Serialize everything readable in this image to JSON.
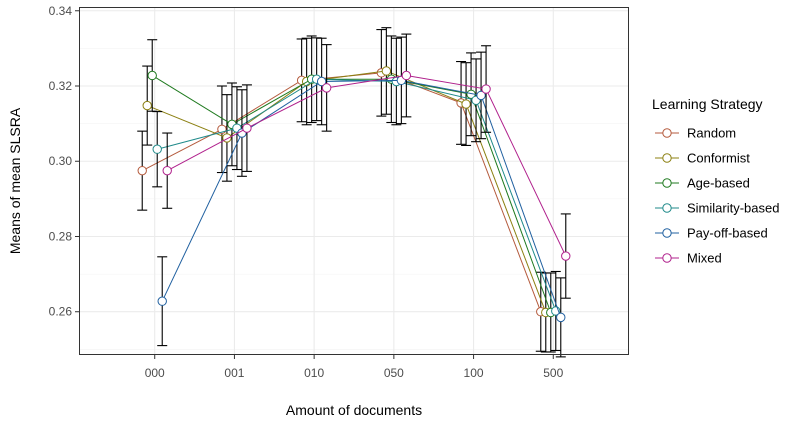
{
  "chart_data": {
    "type": "line",
    "xlabel": "Amount of documents",
    "ylabel": "Means of mean SLSRA",
    "categories": [
      "000",
      "001",
      "010",
      "050",
      "100",
      "500"
    ],
    "ylim": [
      0.2485,
      0.341
    ],
    "yticks": [
      0.26,
      0.28,
      0.3,
      0.32,
      0.34
    ],
    "ytick_labels": [
      "0.26",
      "0.28",
      "0.30",
      "0.32",
      "0.34"
    ],
    "grid": true,
    "error_bars": true,
    "legend_title": "Learning Strategy",
    "legend_position": "right",
    "series": [
      {
        "name": "Random",
        "color": "#B45A3C",
        "values": [
          0.2975,
          0.3085,
          0.3215,
          0.3235,
          0.3155,
          0.26
        ],
        "errors": [
          0.0105,
          0.0115,
          0.011,
          0.0115,
          0.011,
          0.0105
        ]
      },
      {
        "name": "Conformist",
        "color": "#8C8012",
        "values": [
          0.3148,
          0.3062,
          0.3212,
          0.324,
          0.3152,
          0.2598
        ],
        "errors": [
          0.0105,
          0.0115,
          0.0115,
          0.0115,
          0.011,
          0.0105
        ]
      },
      {
        "name": "Age-based",
        "color": "#1F7A1F",
        "values": [
          0.3228,
          0.3098,
          0.3218,
          0.3218,
          0.3178,
          0.2598
        ],
        "errors": [
          0.0095,
          0.011,
          0.0115,
          0.0115,
          0.011,
          0.0105
        ]
      },
      {
        "name": "Similarity-based",
        "color": "#1F8A8A",
        "values": [
          0.3032,
          0.3088,
          0.3218,
          0.3212,
          0.3162,
          0.2602
        ],
        "errors": [
          0.01,
          0.011,
          0.011,
          0.0115,
          0.011,
          0.0105
        ]
      },
      {
        "name": "Pay-off-based",
        "color": "#2060A0",
        "values": [
          0.2628,
          0.3075,
          0.3212,
          0.3215,
          0.3175,
          0.2585
        ],
        "errors": [
          0.0118,
          0.0115,
          0.0115,
          0.0115,
          0.0115,
          0.0105
        ]
      },
      {
        "name": "Mixed",
        "color": "#B0208C",
        "values": [
          0.2975,
          0.3088,
          0.3195,
          0.3228,
          0.3192,
          0.2748
        ],
        "errors": [
          0.01,
          0.0115,
          0.0115,
          0.011,
          0.0115,
          0.0112
        ]
      }
    ]
  }
}
